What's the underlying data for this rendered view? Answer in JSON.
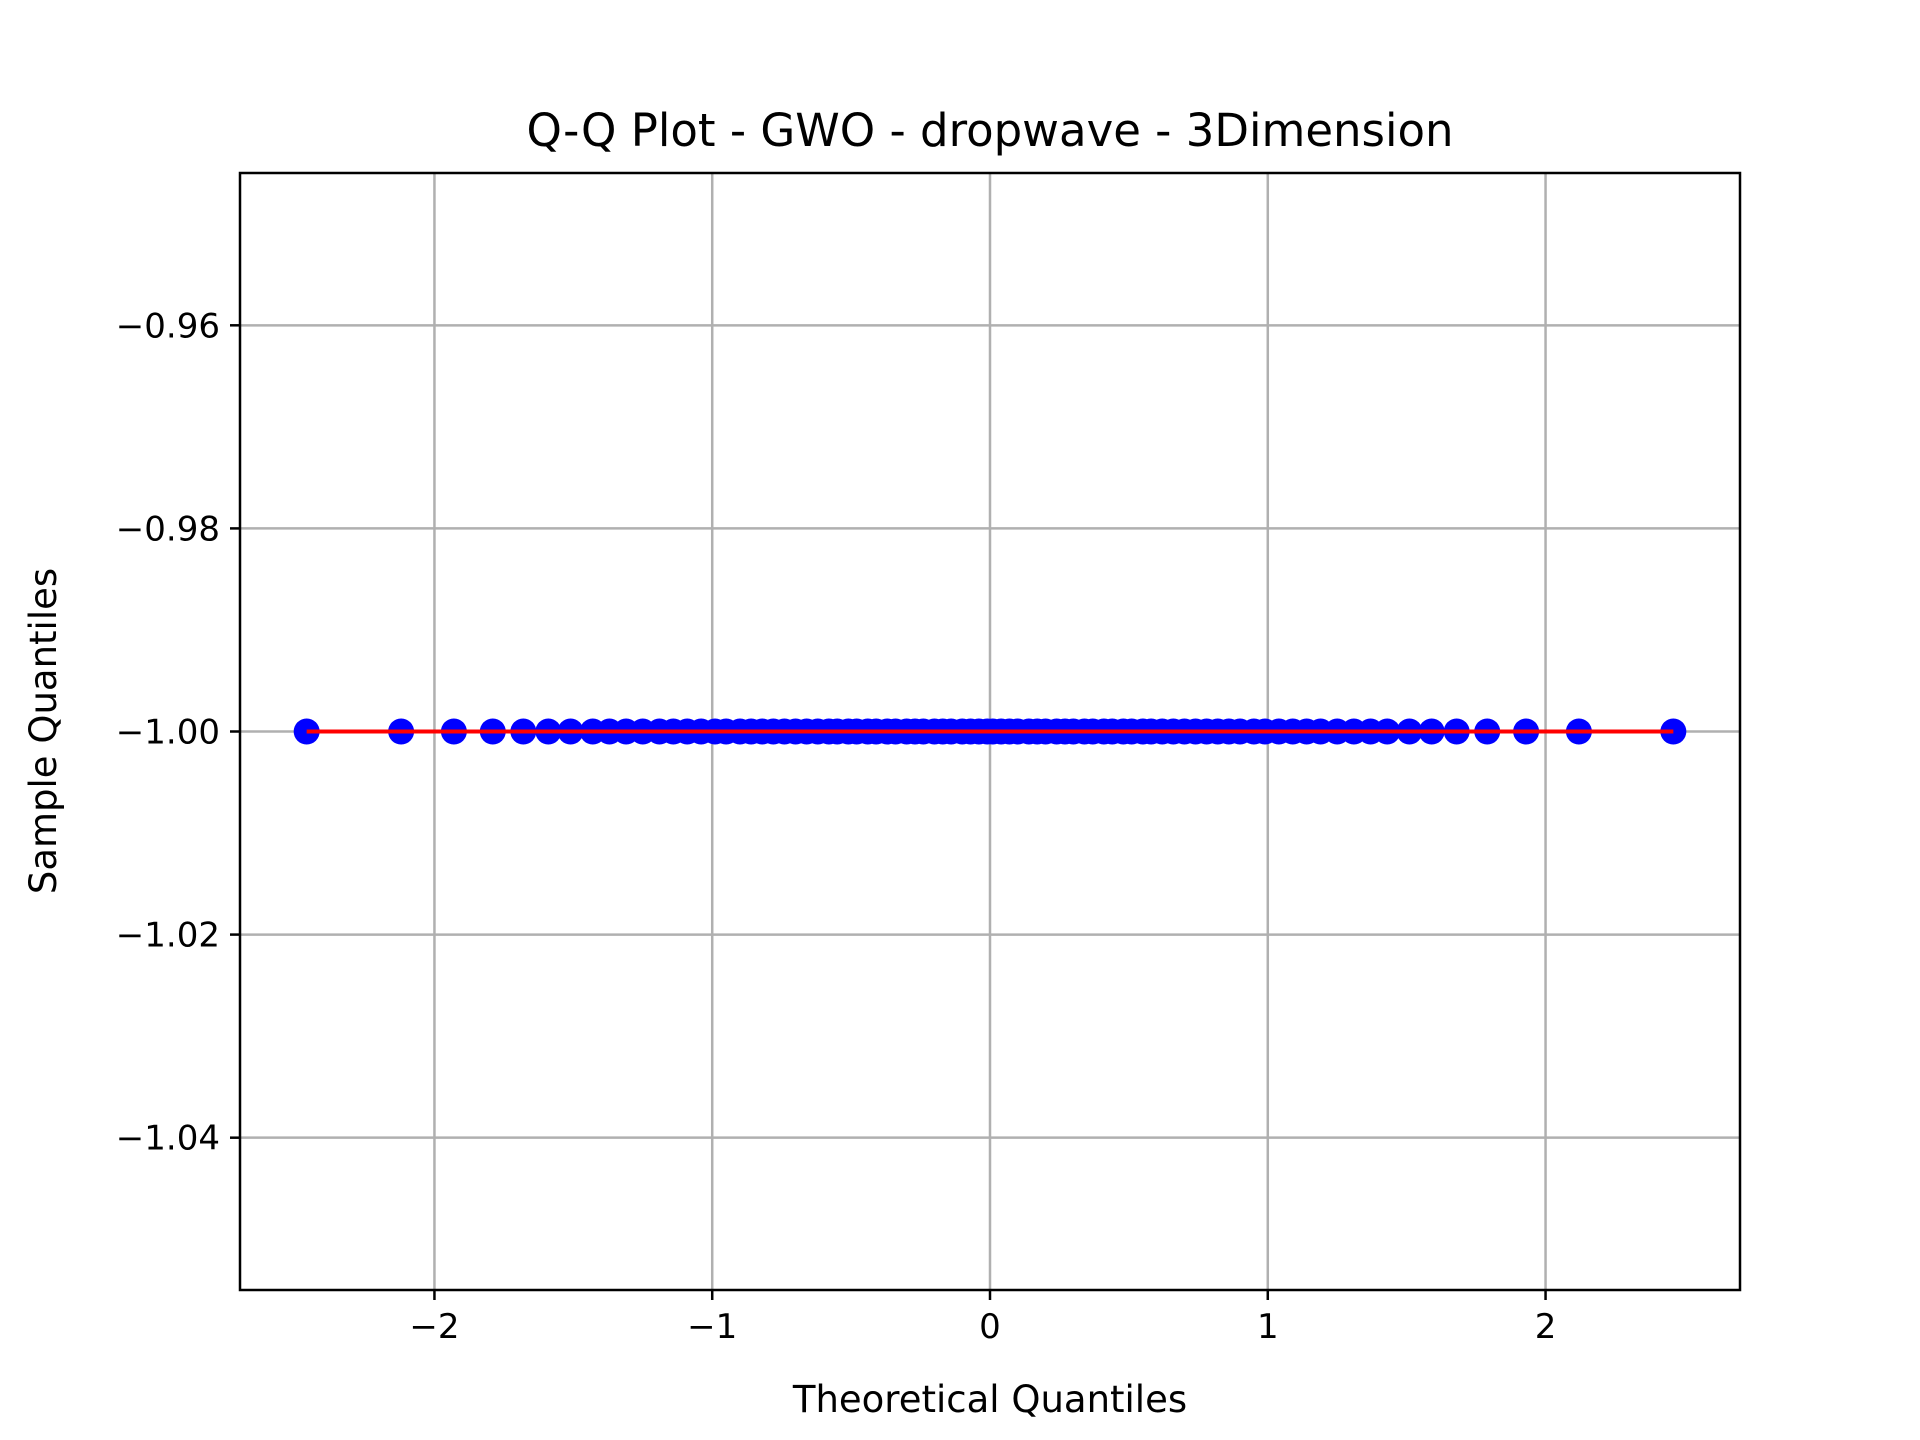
{
  "chart_data": {
    "type": "scatter",
    "title": "Q-Q Plot - GWO - dropwave - 3Dimension",
    "xlabel": "Theoretical Quantiles",
    "ylabel": "Sample Quantiles",
    "xlim": [
      -2.7,
      2.7
    ],
    "ylim": [
      -1.055,
      -0.945
    ],
    "xticks": [
      -2,
      -1,
      0,
      1,
      2
    ],
    "xtick_labels": [
      "−2",
      "−1",
      "0",
      "1",
      "2"
    ],
    "yticks": [
      -0.96,
      -0.98,
      -1.0,
      -1.02,
      -1.04
    ],
    "ytick_labels": [
      "−0.96",
      "−0.98",
      "−1.00",
      "−1.02",
      "−1.04"
    ],
    "grid": true,
    "series": [
      {
        "kind": "points",
        "color": "#0000ff",
        "x": [
          -2.46,
          -2.12,
          -1.93,
          -1.79,
          -1.68,
          -1.59,
          -1.51,
          -1.43,
          -1.37,
          -1.31,
          -1.25,
          -1.19,
          -1.14,
          -1.09,
          -1.04,
          -0.99,
          -0.95,
          -0.9,
          -0.86,
          -0.82,
          -0.78,
          -0.74,
          -0.7,
          -0.66,
          -0.62,
          -0.58,
          -0.55,
          -0.51,
          -0.48,
          -0.44,
          -0.41,
          -0.37,
          -0.34,
          -0.3,
          -0.27,
          -0.24,
          -0.2,
          -0.17,
          -0.14,
          -0.1,
          -0.07,
          -0.04,
          -0.01,
          0.01,
          0.04,
          0.07,
          0.1,
          0.14,
          0.17,
          0.2,
          0.24,
          0.27,
          0.3,
          0.34,
          0.37,
          0.41,
          0.44,
          0.48,
          0.51,
          0.55,
          0.58,
          0.62,
          0.66,
          0.7,
          0.74,
          0.78,
          0.82,
          0.86,
          0.9,
          0.95,
          0.99,
          1.04,
          1.09,
          1.14,
          1.19,
          1.25,
          1.31,
          1.37,
          1.43,
          1.51,
          1.59,
          1.68,
          1.79,
          1.93,
          2.12,
          2.46
        ],
        "y_constant": -1.0
      },
      {
        "kind": "fit-line",
        "color": "#ff0000",
        "x": [
          -2.46,
          2.46
        ],
        "y": [
          -1.0,
          -1.0
        ]
      }
    ]
  }
}
